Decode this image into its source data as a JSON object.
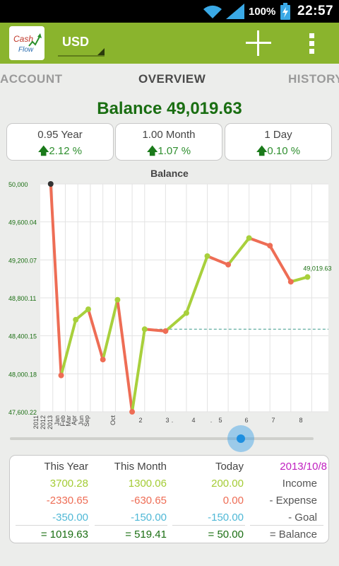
{
  "status_bar": {
    "battery_percent": "100%",
    "time": "22:57",
    "icons": [
      "wifi-icon",
      "signal-icon",
      "battery-charging-icon"
    ]
  },
  "action_bar": {
    "logo_text_line1": "Cash",
    "logo_text_line2": "Flow",
    "currency": "USD",
    "icons": [
      "add-icon",
      "overflow-menu-icon"
    ],
    "accent_color": "#8ab42d"
  },
  "tabs": [
    {
      "label": "ACCOUNT",
      "selected": false
    },
    {
      "label": "OVERVIEW",
      "selected": true
    },
    {
      "label": "HISTORY",
      "selected": false
    }
  ],
  "balance_title": "Balance 49,019.63",
  "summary_cards": [
    {
      "period": "0.95 Year",
      "change": "2.12 %"
    },
    {
      "period": "1.00 Month",
      "change": "1.07 %"
    },
    {
      "period": "1 Day",
      "change": "0.10 %"
    }
  ],
  "chart_data": {
    "type": "line",
    "title": "Balance",
    "ylim": [
      47600.22,
      50000
    ],
    "y_ticks": [
      "50,000",
      "49,600.04",
      "49,200.07",
      "48,800.11",
      "48,400.15",
      "48,000.18",
      "47,600.22"
    ],
    "x_labels": [
      "2011",
      "2012",
      "2013",
      "Jan",
      "Feb",
      "Mar",
      "Apr",
      "Jun",
      "Sep",
      "Oct",
      "2",
      "3",
      "4",
      "5",
      "6",
      "7",
      "8",
      ".",
      "."
    ],
    "points": [
      {
        "x": 0.5,
        "y": 50000
      },
      {
        "x": 1.0,
        "y": 47983
      },
      {
        "x": 1.7,
        "y": 48570
      },
      {
        "x": 2.3,
        "y": 48680
      },
      {
        "x": 3.0,
        "y": 48150
      },
      {
        "x": 3.7,
        "y": 48780
      },
      {
        "x": 4.4,
        "y": 47600
      },
      {
        "x": 5.0,
        "y": 48470
      },
      {
        "x": 6.0,
        "y": 48450
      },
      {
        "x": 7.0,
        "y": 48640
      },
      {
        "x": 8.0,
        "y": 49240
      },
      {
        "x": 9.0,
        "y": 49150
      },
      {
        "x": 10.0,
        "y": 49430
      },
      {
        "x": 11.0,
        "y": 49350
      },
      {
        "x": 12.0,
        "y": 48970
      },
      {
        "x": 12.8,
        "y": 49019.63
      }
    ],
    "end_label": "49,019.63",
    "reference_line": 48470,
    "series_colors": {
      "up": "#a8d03c",
      "down": "#ee6d55"
    },
    "grid": true
  },
  "slider": {
    "value": 0.76
  },
  "table": {
    "headers": [
      "This Year",
      "This Month",
      "Today",
      "2013/10/8"
    ],
    "rows": [
      {
        "values": [
          "3700.28",
          "1300.06",
          "200.00"
        ],
        "label": "Income"
      },
      {
        "values": [
          "-2330.65",
          "-630.65",
          "0.00"
        ],
        "label": "- Expense"
      },
      {
        "values": [
          "-350.00",
          "-150.00",
          "-150.00"
        ],
        "label": "- Goal"
      },
      {
        "values": [
          "= 1019.63",
          "= 519.41",
          "= 50.00"
        ],
        "label": "= Balance"
      }
    ]
  }
}
